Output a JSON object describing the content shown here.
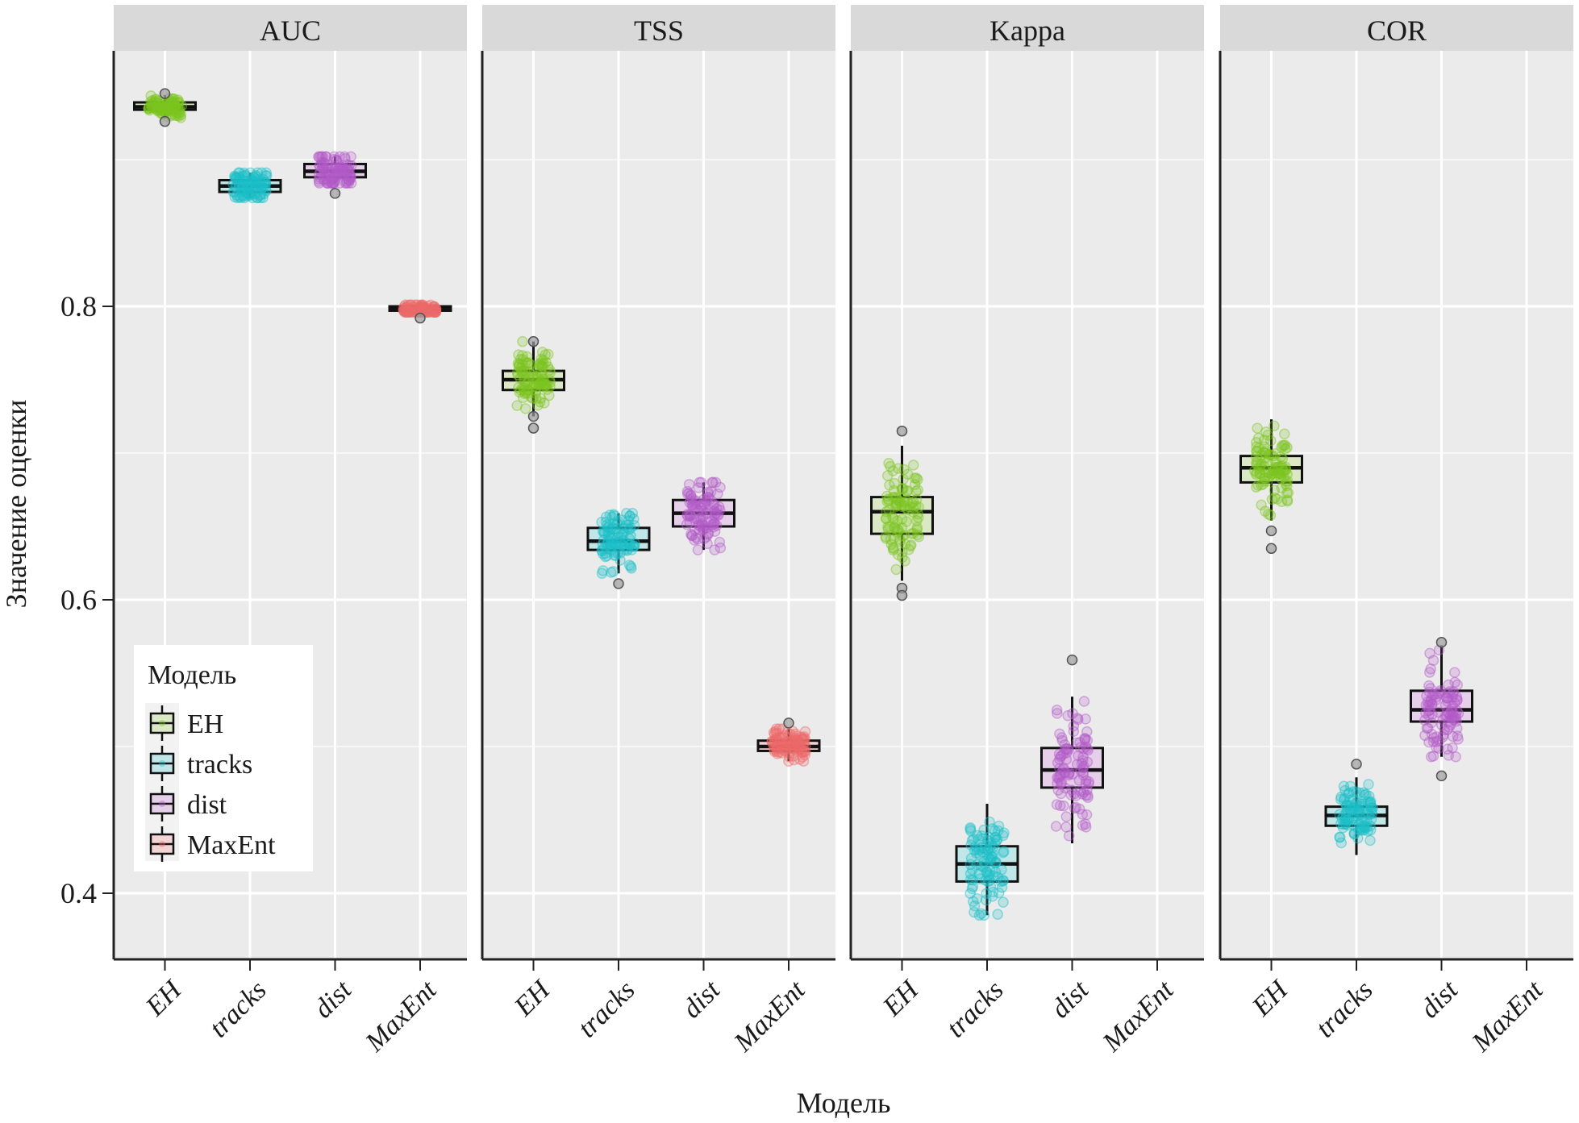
{
  "chart_data": {
    "type": "boxplot",
    "title": "",
    "xlabel": "Модель",
    "ylabel": "Значение оценки",
    "ylim": [
      0.355,
      0.97
    ],
    "yticks": [
      0.4,
      0.6,
      0.8
    ],
    "ytick_labels": [
      "0.4",
      "0.6",
      "0.8"
    ],
    "grid": true,
    "facets": [
      "AUC",
      "TSS",
      "Kappa",
      "COR"
    ],
    "categories": [
      "EH",
      "tracks",
      "dist",
      "MaxEnt"
    ],
    "colors": {
      "EH": "#7CC520",
      "tracks": "#1DBFC8",
      "dist": "#B35CC7",
      "MaxEnt": "#EE6B6B"
    },
    "fills": {
      "EH": "#dbe8c6",
      "tracks": "#c0e6e8",
      "dist": "#e6cfe9",
      "MaxEnt": "#f3d4d4"
    },
    "legend": {
      "title": "Модель",
      "position": "inside-bottom-left",
      "entries": [
        "EH",
        "tracks",
        "dist",
        "MaxEnt"
      ]
    },
    "series": [
      {
        "facet": "AUC",
        "boxes": [
          {
            "category": "EH",
            "q1": 0.934,
            "median": 0.936,
            "q3": 0.939,
            "whisker_low": 0.928,
            "whisker_high": 0.944,
            "outliers": [
              0.945,
              0.926
            ]
          },
          {
            "category": "tracks",
            "q1": 0.878,
            "median": 0.882,
            "q3": 0.886,
            "whisker_low": 0.874,
            "whisker_high": 0.891,
            "outliers": []
          },
          {
            "category": "dist",
            "q1": 0.888,
            "median": 0.892,
            "q3": 0.897,
            "whisker_low": 0.884,
            "whisker_high": 0.902,
            "outliers": [
              0.877
            ]
          },
          {
            "category": "MaxEnt",
            "q1": 0.797,
            "median": 0.798,
            "q3": 0.8,
            "whisker_low": 0.796,
            "whisker_high": 0.801,
            "outliers": [
              0.792
            ]
          }
        ]
      },
      {
        "facet": "TSS",
        "boxes": [
          {
            "category": "EH",
            "q1": 0.743,
            "median": 0.75,
            "q3": 0.756,
            "whisker_low": 0.725,
            "whisker_high": 0.776,
            "outliers": [
              0.776,
              0.725,
              0.717
            ]
          },
          {
            "category": "tracks",
            "q1": 0.634,
            "median": 0.64,
            "q3": 0.649,
            "whisker_low": 0.618,
            "whisker_high": 0.659,
            "outliers": [
              0.611
            ]
          },
          {
            "category": "dist",
            "q1": 0.65,
            "median": 0.659,
            "q3": 0.668,
            "whisker_low": 0.634,
            "whisker_high": 0.68,
            "outliers": []
          },
          {
            "category": "MaxEnt",
            "q1": 0.497,
            "median": 0.5,
            "q3": 0.504,
            "whisker_low": 0.49,
            "whisker_high": 0.512,
            "outliers": [
              0.516
            ]
          }
        ]
      },
      {
        "facet": "Kappa",
        "boxes": [
          {
            "category": "EH",
            "q1": 0.645,
            "median": 0.66,
            "q3": 0.67,
            "whisker_low": 0.613,
            "whisker_high": 0.705,
            "outliers": [
              0.715,
              0.608,
              0.603
            ]
          },
          {
            "category": "tracks",
            "q1": 0.408,
            "median": 0.42,
            "q3": 0.432,
            "whisker_low": 0.385,
            "whisker_high": 0.461,
            "outliers": []
          },
          {
            "category": "dist",
            "q1": 0.472,
            "median": 0.484,
            "q3": 0.499,
            "whisker_low": 0.434,
            "whisker_high": 0.534,
            "outliers": [
              0.559
            ]
          }
        ]
      },
      {
        "facet": "COR",
        "boxes": [
          {
            "category": "EH",
            "q1": 0.68,
            "median": 0.69,
            "q3": 0.698,
            "whisker_low": 0.654,
            "whisker_high": 0.723,
            "outliers": [
              0.647,
              0.635
            ]
          },
          {
            "category": "tracks",
            "q1": 0.446,
            "median": 0.453,
            "q3": 0.459,
            "whisker_low": 0.426,
            "whisker_high": 0.479,
            "outliers": [
              0.488
            ]
          },
          {
            "category": "dist",
            "q1": 0.517,
            "median": 0.525,
            "q3": 0.538,
            "whisker_low": 0.493,
            "whisker_high": 0.569,
            "outliers": [
              0.571,
              0.48
            ]
          }
        ]
      }
    ]
  }
}
